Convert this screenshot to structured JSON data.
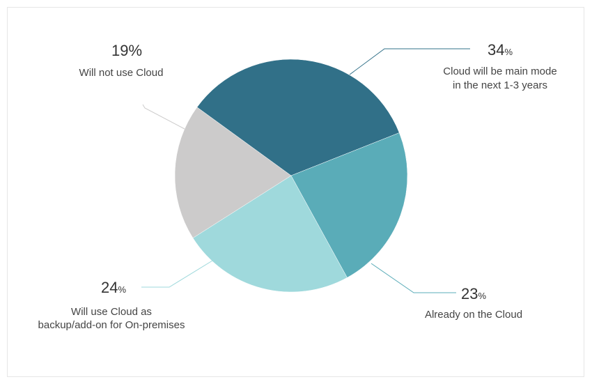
{
  "chart_data": {
    "type": "pie",
    "slices": [
      {
        "name": "Cloud will be main mode in the next 1-3 years",
        "value": 34,
        "color": "#317088",
        "pct_text": "34",
        "pct_symbol": "%",
        "label_lines": [
          "Cloud will be main mode",
          "in the next 1-3 years"
        ]
      },
      {
        "name": "Already on the Cloud",
        "value": 23,
        "color": "#5aacb8",
        "pct_text": "23",
        "pct_symbol": "%",
        "label_lines": [
          "Already on the Cloud"
        ]
      },
      {
        "name": "Will use Cloud as backup/add-on for On-premises",
        "value": 24,
        "color": "#9fd9dc",
        "pct_text": "24",
        "pct_symbol": "%",
        "label_lines": [
          "Will use Cloud as",
          "backup/add-on for On-premises"
        ]
      },
      {
        "name": "Will not use Cloud",
        "value": 19,
        "color": "#cccbcb",
        "pct_text": "19%",
        "pct_symbol": "",
        "label_lines": [
          "Will not use Cloud"
        ]
      }
    ]
  }
}
